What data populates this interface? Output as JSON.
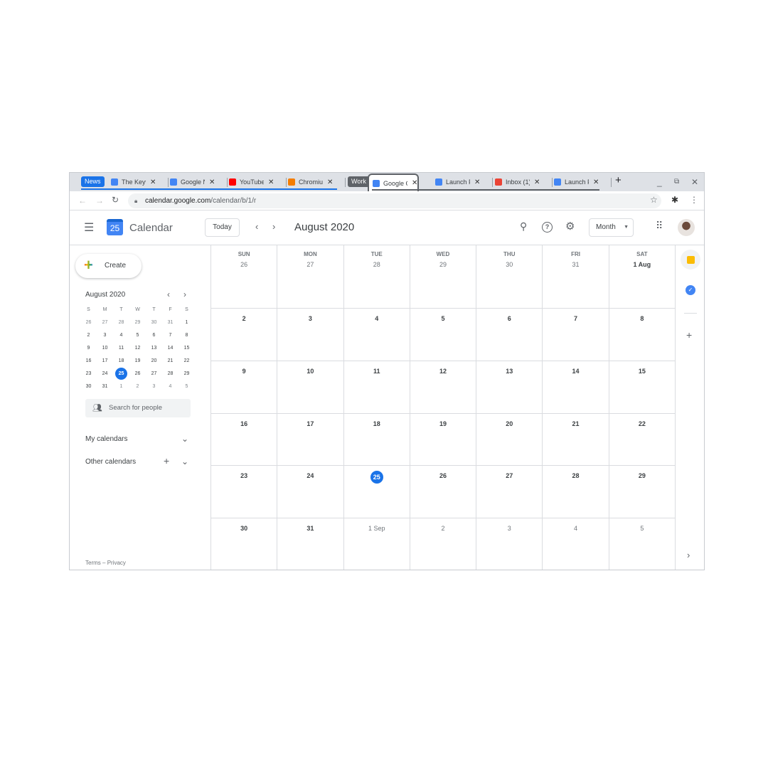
{
  "browser": {
    "tabs": [
      {
        "group": "News",
        "group_color": "#1a73e8"
      },
      {
        "title": "The Keyword",
        "icon": "google-icon",
        "color": "#4285f4"
      },
      {
        "title": "Google News",
        "icon": "google-news-icon",
        "color": "#4285f4"
      },
      {
        "title": "YouTube",
        "icon": "youtube-icon",
        "color": "#ff0000"
      },
      {
        "title": "Chromium Blog",
        "icon": "blogger-icon",
        "color": "#f57d00"
      },
      {
        "group": "Work",
        "group_color": "#5f6368"
      },
      {
        "title": "Google Calendar",
        "icon": "calendar-icon",
        "color": "#4285f4",
        "active": true
      },
      {
        "title": "Launch Pre",
        "icon": "docs-icon",
        "color": "#4285f4"
      },
      {
        "title": "Inbox (1)",
        "icon": "gmail-icon",
        "color": "#ea4335"
      },
      {
        "title": "Launch Plan",
        "icon": "docs-icon",
        "color": "#4285f4"
      }
    ],
    "url_host": "calendar.google.com",
    "url_path": "/calendar/b/1/r"
  },
  "header": {
    "logo_day": "25",
    "title": "Calendar",
    "today_label": "Today",
    "month_title": "August 2020",
    "view_label": "Month"
  },
  "sidebar": {
    "create_label": "Create",
    "mini_title": "August 2020",
    "weekday_initials": [
      "S",
      "M",
      "T",
      "W",
      "T",
      "F",
      "S"
    ],
    "mini_weeks": [
      [
        "26",
        "27",
        "28",
        "29",
        "30",
        "31",
        "1"
      ],
      [
        "2",
        "3",
        "4",
        "5",
        "6",
        "7",
        "8"
      ],
      [
        "9",
        "10",
        "11",
        "12",
        "13",
        "14",
        "15"
      ],
      [
        "16",
        "17",
        "18",
        "19",
        "20",
        "21",
        "22"
      ],
      [
        "23",
        "24",
        "25",
        "26",
        "27",
        "28",
        "29"
      ],
      [
        "30",
        "31",
        "1",
        "2",
        "3",
        "4",
        "5"
      ]
    ],
    "search_people_placeholder": "Search for people",
    "my_calendars": "My calendars",
    "other_calendars": "Other calendars",
    "footer_terms": "Terms",
    "footer_sep": "–",
    "footer_privacy": "Privacy"
  },
  "grid": {
    "weekdays": [
      "SUN",
      "MON",
      "TUE",
      "WED",
      "THU",
      "FRI",
      "SAT"
    ],
    "weeks": [
      [
        "26",
        "27",
        "28",
        "29",
        "30",
        "31",
        "1 Aug"
      ],
      [
        "2",
        "3",
        "4",
        "5",
        "6",
        "7",
        "8"
      ],
      [
        "9",
        "10",
        "11",
        "12",
        "13",
        "14",
        "15"
      ],
      [
        "16",
        "17",
        "18",
        "19",
        "20",
        "21",
        "22"
      ],
      [
        "23",
        "24",
        "25",
        "26",
        "27",
        "28",
        "29"
      ],
      [
        "30",
        "31",
        "1 Sep",
        "2",
        "3",
        "4",
        "5"
      ]
    ],
    "today": "25",
    "accent": "#1a73e8"
  }
}
